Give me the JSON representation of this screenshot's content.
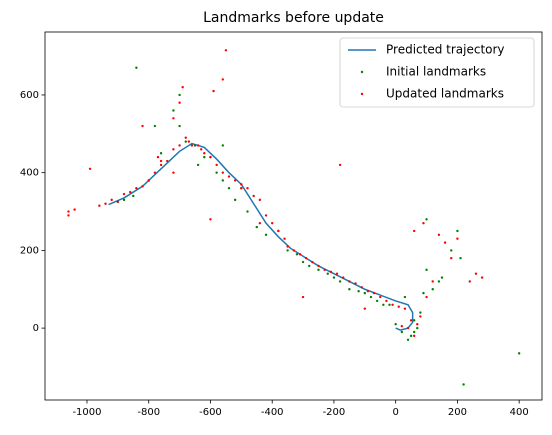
{
  "chart_data": {
    "type": "scatter",
    "title": "Landmarks before update",
    "xlim": [
      -1136,
      474
    ],
    "ylim": [
      -185,
      762
    ],
    "xticks": [
      -1000,
      -800,
      -600,
      -400,
      -200,
      0,
      200,
      400
    ],
    "yticks": [
      0,
      200,
      400,
      600
    ],
    "legend": "upper right",
    "series": [
      {
        "name": "Predicted trajectory",
        "type": "line",
        "color": "#1f77b4",
        "x": [
          -930,
          -880,
          -820,
          -760,
          -700,
          -660,
          -620,
          -580,
          -540,
          -500,
          -460,
          -420,
          -380,
          -340,
          -300,
          -250,
          -200,
          -150,
          -100,
          -50,
          0,
          40,
          55,
          55,
          40,
          15,
          0
        ],
        "values": [
          318,
          335,
          365,
          410,
          455,
          475,
          465,
          435,
          400,
          370,
          320,
          270,
          235,
          205,
          185,
          160,
          140,
          120,
          100,
          85,
          70,
          60,
          40,
          15,
          0,
          -5,
          0
        ]
      },
      {
        "name": "Initial landmarks",
        "type": "scatter",
        "color": "green",
        "x": [
          -900,
          -850,
          -800,
          -780,
          -760,
          -720,
          -700,
          -680,
          -650,
          -640,
          -600,
          -580,
          -560,
          -520,
          -500,
          -480,
          -450,
          -420,
          -380,
          -350,
          -320,
          -300,
          -280,
          -250,
          -220,
          -200,
          -180,
          -150,
          -120,
          -100,
          -80,
          -60,
          -40,
          -20,
          0,
          20,
          40,
          50,
          60,
          70,
          80,
          90,
          100,
          120,
          150,
          180,
          200,
          220,
          -840,
          -700,
          -620,
          -560,
          -880,
          60,
          30,
          100,
          140,
          400,
          210,
          -540
        ],
        "values": [
          325,
          340,
          380,
          520,
          450,
          560,
          600,
          480,
          470,
          420,
          440,
          400,
          380,
          330,
          360,
          300,
          260,
          240,
          250,
          200,
          190,
          170,
          160,
          150,
          140,
          130,
          120,
          100,
          95,
          90,
          80,
          70,
          60,
          60,
          10,
          -10,
          -30,
          -20,
          20,
          0,
          40,
          90,
          150,
          100,
          130,
          200,
          250,
          -145,
          670,
          520,
          440,
          470,
          330,
          -10,
          80,
          280,
          120,
          -65,
          180,
          360
        ]
      },
      {
        "name": "Updated landmarks",
        "type": "scatter",
        "color": "red",
        "x": [
          -1060,
          -1060,
          -1040,
          -990,
          -960,
          -940,
          -920,
          -900,
          -880,
          -860,
          -840,
          -820,
          -800,
          -780,
          -770,
          -760,
          -740,
          -720,
          -700,
          -690,
          -680,
          -670,
          -660,
          -640,
          -630,
          -620,
          -600,
          -580,
          -560,
          -550,
          -540,
          -520,
          -500,
          -480,
          -460,
          -440,
          -420,
          -400,
          -380,
          -360,
          -350,
          -330,
          -310,
          -290,
          -270,
          -250,
          -230,
          -210,
          -190,
          -170,
          -150,
          -130,
          -110,
          -90,
          -70,
          -50,
          -30,
          -10,
          10,
          30,
          50,
          60,
          70,
          40,
          20,
          80,
          100,
          120,
          140,
          160,
          180,
          200,
          240,
          260,
          280,
          -720,
          -700,
          -590,
          -560,
          -720,
          -500,
          -440,
          -300,
          -100,
          -180,
          -600,
          -760,
          -820,
          60,
          90
        ],
        "values": [
          300,
          290,
          305,
          410,
          315,
          320,
          330,
          325,
          345,
          350,
          360,
          365,
          380,
          400,
          440,
          420,
          430,
          460,
          470,
          620,
          490,
          480,
          470,
          470,
          460,
          450,
          440,
          420,
          400,
          715,
          390,
          380,
          370,
          360,
          340,
          330,
          290,
          270,
          250,
          230,
          210,
          200,
          190,
          180,
          170,
          160,
          150,
          145,
          140,
          130,
          120,
          115,
          105,
          95,
          90,
          80,
          70,
          60,
          55,
          50,
          20,
          -20,
          10,
          0,
          5,
          30,
          80,
          120,
          240,
          220,
          180,
          230,
          120,
          140,
          130,
          540,
          580,
          610,
          640,
          400,
          360,
          270,
          80,
          50,
          420,
          280,
          430,
          520,
          250,
          270
        ]
      }
    ]
  }
}
